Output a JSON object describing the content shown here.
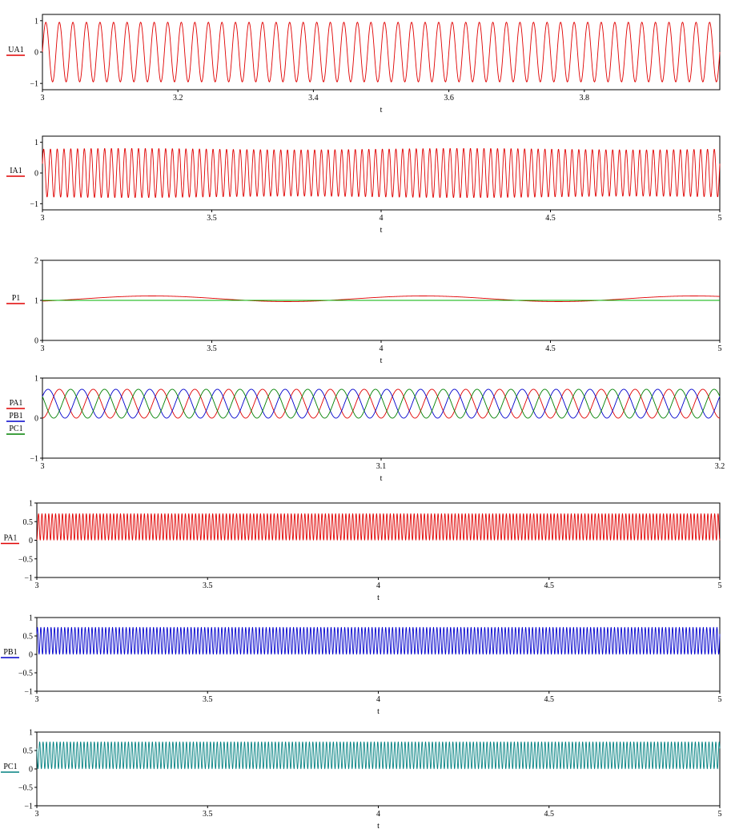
{
  "chart_data": [
    {
      "type": "line",
      "ylabel": "UA1",
      "xlabel": "t",
      "xlim": [
        3,
        4
      ],
      "ylim": [
        -1.2,
        1.2
      ],
      "xticks": [
        "3",
        "3.2",
        "3.4",
        "3.6",
        "3.8"
      ],
      "yticks": [
        "1",
        "0",
        "−1"
      ],
      "series": [
        {
          "name": "UA1",
          "color": "#e00000",
          "func": "sin",
          "amp": 0.95,
          "freq": 50,
          "phase": 0
        }
      ]
    },
    {
      "type": "line",
      "ylabel": "IA1",
      "xlabel": "t",
      "xlim": [
        3,
        5
      ],
      "ylim": [
        -1.2,
        1.2
      ],
      "xticks": [
        "3",
        "3.5",
        "4",
        "4.5",
        "5"
      ],
      "yticks": [
        "1",
        "0",
        "−1"
      ],
      "series": [
        {
          "name": "IA1",
          "color": "#e00000",
          "func": "sin",
          "amp": 0.78,
          "freq": 50,
          "phase": 0.4,
          "mod": 0.03,
          "modfreq": 1
        }
      ]
    },
    {
      "type": "line",
      "ylabel": "P1",
      "xlabel": "t",
      "xlim": [
        3,
        5
      ],
      "ylim": [
        0,
        2
      ],
      "xticks": [
        "3",
        "3.5",
        "4",
        "4.5",
        "5"
      ],
      "yticks": [
        "2",
        "1",
        "0"
      ],
      "series": [
        {
          "name": "P1",
          "color": "#e00000",
          "func": "offset-sin",
          "offset": 1.04,
          "amp": 0.07,
          "freq": 1.25,
          "phase": 0.6
        },
        {
          "name": "",
          "color": "#00b000",
          "func": "const",
          "value": 1.0
        }
      ]
    },
    {
      "type": "line",
      "ylabel": "PA1 PB1 PC1",
      "xlabel": "t",
      "xlim": [
        3,
        3.2
      ],
      "ylim": [
        -1,
        1
      ],
      "xticks": [
        "3",
        "3.1",
        "3.2"
      ],
      "yticks": [
        "1",
        "0",
        "−1"
      ],
      "series": [
        {
          "name": "PA1",
          "color": "#e00000",
          "func": "sin2",
          "amp": 0.72,
          "freq": 50,
          "phase": 0
        },
        {
          "name": "PB1",
          "color": "#0000cc",
          "func": "sin2",
          "amp": 0.72,
          "freq": 50,
          "phase": -2.094
        },
        {
          "name": "PC1",
          "color": "#008000",
          "func": "sin2",
          "amp": 0.72,
          "freq": 50,
          "phase": 2.094
        }
      ]
    },
    {
      "type": "line",
      "ylabel": "PA1",
      "xlabel": "t",
      "xlim": [
        3,
        5
      ],
      "ylim": [
        -1,
        1
      ],
      "xticks": [
        "3",
        "3.5",
        "4",
        "4.5",
        "5"
      ],
      "yticks": [
        "1",
        "0.5",
        "0",
        "−0.5",
        "−1"
      ],
      "series": [
        {
          "name": "PA1",
          "color": "#e00000",
          "func": "sin2",
          "amp": 0.72,
          "freq": 50,
          "phase": 0
        }
      ]
    },
    {
      "type": "line",
      "ylabel": "PB1",
      "xlabel": "t",
      "xlim": [
        3,
        5
      ],
      "ylim": [
        -1,
        1
      ],
      "xticks": [
        "3",
        "3.5",
        "4",
        "4.5",
        "5"
      ],
      "yticks": [
        "1",
        "0.5",
        "0",
        "−0.5",
        "−1"
      ],
      "series": [
        {
          "name": "PB1",
          "color": "#0000cc",
          "func": "sin2",
          "amp": 0.74,
          "freq": 50,
          "phase": -2.094
        }
      ]
    },
    {
      "type": "line",
      "ylabel": "PC1",
      "xlabel": "t",
      "xlim": [
        3,
        5
      ],
      "ylim": [
        -1,
        1
      ],
      "xticks": [
        "3",
        "3.5",
        "4",
        "4.5",
        "5"
      ],
      "yticks": [
        "1",
        "0.5",
        "0",
        "−0.5",
        "−1"
      ],
      "series": [
        {
          "name": "PC1",
          "color": "#008080",
          "func": "sin2",
          "amp": 0.74,
          "freq": 50,
          "phase": 2.094
        }
      ]
    }
  ]
}
